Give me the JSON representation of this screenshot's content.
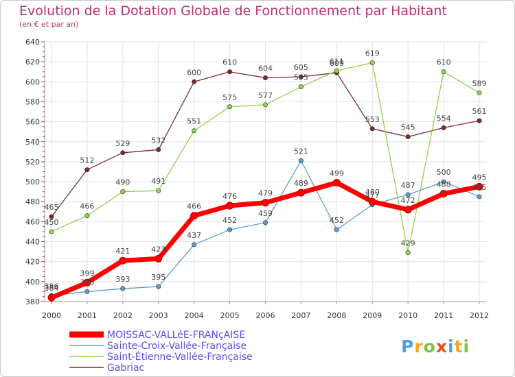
{
  "chart_data": {
    "type": "line",
    "title": "Evolution de la Dotation Globale de Fonctionnement par Habitant",
    "subtitle": "(en € et par an)",
    "x": [
      "2000",
      "2001",
      "2002",
      "2003",
      "2004",
      "2005",
      "2006",
      "2007",
      "2008",
      "2009",
      "2010",
      "2011",
      "2012"
    ],
    "ylim": [
      380,
      640
    ],
    "yticks": [
      "380",
      "400",
      "420",
      "440",
      "460",
      "480",
      "500",
      "520",
      "540",
      "560",
      "580",
      "600",
      "620",
      "640"
    ],
    "grid": true,
    "series": [
      {
        "name": "MOISSAC-VALLéE-FRANçAISE",
        "color": "#ff0000",
        "values": [
          384,
          399,
          421,
          423,
          466,
          476,
          479,
          489,
          499,
          480,
          472,
          488,
          495
        ],
        "labels": [
          "384",
          "399",
          "421",
          "423",
          "466",
          "476",
          "479",
          "489",
          "499",
          "480",
          "472",
          "488",
          "495"
        ]
      },
      {
        "name": "Sainte-Croix-Vallée-Française",
        "color": "#5b9bd5",
        "values": [
          386,
          390,
          393,
          395,
          437,
          452,
          459,
          521,
          452,
          477,
          487,
          500,
          485
        ],
        "labels": [
          "386",
          "390",
          "393",
          "395",
          "437",
          "452",
          "459",
          "521",
          "452",
          "477",
          "487",
          "500",
          "485"
        ]
      },
      {
        "name": "Saint-Étienne-Vallée-Française",
        "color": "#92d050",
        "values": [
          450,
          466,
          490,
          491,
          551,
          575,
          577,
          595,
          611,
          619,
          429,
          610,
          589
        ],
        "labels": [
          "450",
          "466",
          "490",
          "491",
          "551",
          "575",
          "577",
          "595",
          "611",
          "619",
          "429",
          "610",
          "589"
        ]
      },
      {
        "name": "Gabriac",
        "color": "#7b2a2a",
        "values": [
          465,
          512,
          529,
          532,
          600,
          610,
          604,
          605,
          609,
          553,
          545,
          554,
          561
        ],
        "labels": [
          "465",
          "512",
          "529",
          "532",
          "600",
          "610",
          "604",
          "605",
          "609",
          "553",
          "545",
          "554",
          "561"
        ]
      }
    ]
  },
  "logo": {
    "letters": [
      "P",
      "r",
      "o",
      "x",
      "i",
      "t",
      "i"
    ],
    "colors": [
      "#4aa3df",
      "#f5a623",
      "#7cc242",
      "#e94e1b",
      "#4aa3df",
      "#f5a623",
      "#7cc242"
    ]
  }
}
